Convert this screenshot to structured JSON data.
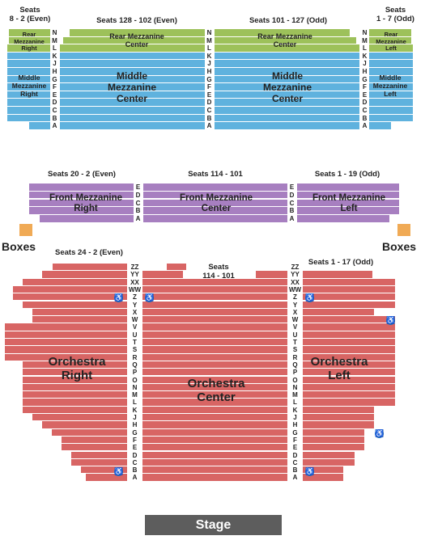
{
  "colors": {
    "rear_mezzanine": "#9dc15a",
    "middle_mezzanine": "#5fb2de",
    "front_mezzanine": "#a77fc0",
    "orchestra": "#d86564",
    "boxes": "#f0aa55",
    "stage": "#5d5d5d",
    "wheelchair": "#1f6fc5"
  },
  "mezzanine": {
    "seats_right_label": "Seats\n8 - 2 (Even)",
    "seats_center_right_label": "Seats 128 - 102 (Even)",
    "seats_center_left_label": "Seats 101 - 127 (Odd)",
    "seats_left_label": "Seats\n1 - 7 (Odd)",
    "rear_right": "Rear\nMezzanine\nRight",
    "rear_center_right": "Rear Mezzanine\nCenter",
    "rear_center_left": "Rear Mezzanine\nCenter",
    "rear_left": "Rear\nMezzanine\nLeft",
    "middle_right": "Middle\nMezzanine\nRight",
    "middle_center_right": "Middle\nMezzanine\nCenter",
    "middle_center_left": "Middle\nMezzanine\nCenter",
    "middle_left": "Middle\nMezzanine\nLeft",
    "rows": [
      "N",
      "M",
      "L",
      "K",
      "J",
      "H",
      "G",
      "F",
      "E",
      "D",
      "C",
      "B",
      "A"
    ]
  },
  "front_mezzanine": {
    "seats_right_label": "Seats 20 - 2 (Even)",
    "seats_center_label": "Seats 114 - 101",
    "seats_left_label": "Seats 1 - 19 (Odd)",
    "right": "Front Mezzanine\nRight",
    "center": "Front Mezzanine\nCenter",
    "left": "Front Mezzanine\nLeft",
    "rows": [
      "E",
      "D",
      "C",
      "B",
      "A"
    ]
  },
  "boxes": {
    "left_label": "Boxes",
    "right_label": "Boxes"
  },
  "orchestra": {
    "seats_right_label": "Seats 24 - 2 (Even)",
    "seats_center_label": "Seats\n114 - 101",
    "seats_left_label": "Seats 1 - 17 (Odd)",
    "right": "Orchestra\nRight",
    "center": "Orchestra\nCenter",
    "left": "Orchestra\nLeft",
    "rows": [
      "ZZ",
      "YY",
      "XX",
      "WW",
      "Z",
      "Y",
      "X",
      "W",
      "V",
      "U",
      "T",
      "S",
      "R",
      "Q",
      "P",
      "O",
      "N",
      "M",
      "L",
      "K",
      "J",
      "H",
      "G",
      "F",
      "E",
      "D",
      "C",
      "B",
      "A"
    ]
  },
  "stage": {
    "label": "Stage"
  },
  "icons": {
    "wheelchair": "wheelchair-icon"
  }
}
